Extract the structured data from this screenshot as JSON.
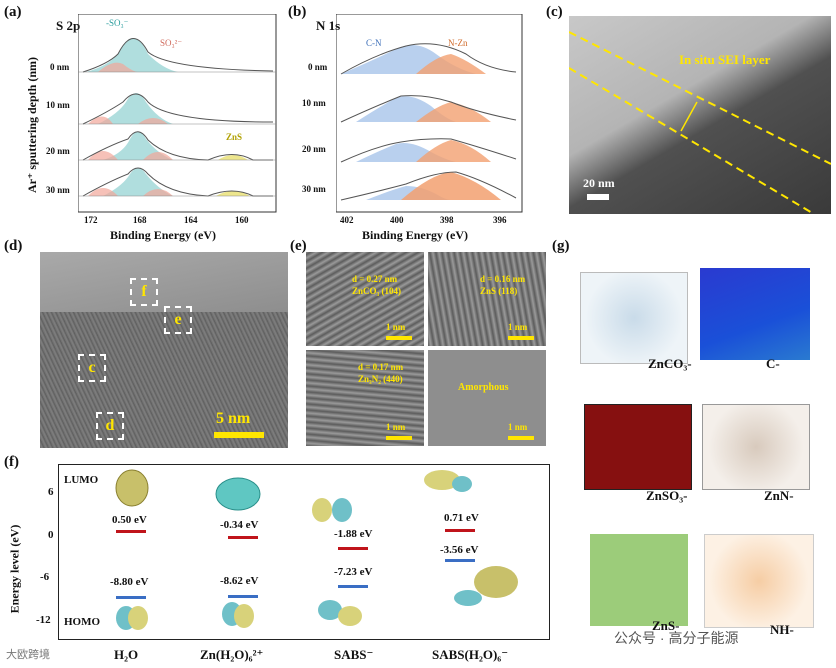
{
  "panel_a": {
    "label": "(a)",
    "title": "S 2p",
    "peak_so3_minus": "-SO₃⁻",
    "peak_so3_2minus": "SO₃²⁻",
    "peak_zns": "ZnS",
    "y_title": "Ar⁺ sputtering depth (nm)",
    "x_title": "Binding Energy (eV)",
    "x_ticks": [
      "172",
      "168",
      "164",
      "160"
    ],
    "depths": [
      "0 nm",
      "10 nm",
      "20 nm",
      "30 nm"
    ]
  },
  "panel_b": {
    "label": "(b)",
    "title": "N 1s",
    "peak_cn": "C-N",
    "peak_nzn": "N-Zn",
    "x_title": "Binding Energy (eV)",
    "x_ticks": [
      "402",
      "400",
      "398",
      "396"
    ],
    "depths": [
      "0 nm",
      "10 nm",
      "20 nm",
      "30 nm"
    ]
  },
  "panel_c": {
    "label": "(c)",
    "annotation": "In situ SEI layer",
    "scale": "20 nm"
  },
  "panel_d": {
    "label": "(d)",
    "boxes": [
      "f",
      "e",
      "c",
      "d"
    ],
    "scale": "5 nm"
  },
  "panel_e": {
    "label": "(e)",
    "tiles": [
      {
        "d": "d = 0.27 nm",
        "plane": "ZnCO₃ (104)",
        "scale": "1 nm"
      },
      {
        "d": "d = 0.16 nm",
        "plane": "ZnS (118)",
        "scale": "1 nm"
      },
      {
        "d": "d = 0.17 nm",
        "plane": "Zn₃N₂ (440)",
        "scale": "1 nm"
      },
      {
        "d": "Amorphous",
        "plane": "",
        "scale": "1 nm"
      }
    ]
  },
  "panel_f": {
    "label": "(f)",
    "y_title": "Energy level (eV)",
    "lumo": "LUMO",
    "homo": "HOMO",
    "y_ticks": [
      "6",
      "0",
      "-6",
      "-12"
    ],
    "molecules": [
      {
        "name": "H₂O",
        "lumo": "0.50 eV",
        "homo": "-8.80 eV",
        "lumo_value": 0.5,
        "homo_value": -8.8
      },
      {
        "name": "Zn(H₂O)₆²⁺",
        "lumo": "-0.34 eV",
        "homo": "-8.62 eV",
        "lumo_value": -0.34,
        "homo_value": -8.62
      },
      {
        "name": "SABS⁻",
        "lumo": "-1.88 eV",
        "homo": "-7.23 eV",
        "lumo_value": -1.88,
        "homo_value": -7.23
      },
      {
        "name": "SABS(H₂O)₆⁻",
        "lumo": "0.71 eV",
        "homo": "-3.56 eV",
        "lumo_value": 0.71,
        "homo_value": -3.56
      }
    ]
  },
  "panel_g": {
    "label": "(g)",
    "cubes": [
      {
        "label": "ZnCO₃-",
        "color": "#8fb6d6"
      },
      {
        "label": "C-",
        "color": "#2a3ad0"
      },
      {
        "label": "ZnSO₃-",
        "color": "#8a1010"
      },
      {
        "label": "ZnN-",
        "color": "#b8a89a"
      },
      {
        "label": "ZnS-",
        "color": "#8fbf6a"
      },
      {
        "label": "NH-",
        "color": "#f1b680"
      }
    ]
  },
  "watermark": {
    "left": "大欧跨境",
    "right": "公众号 · 高分子能源"
  }
}
